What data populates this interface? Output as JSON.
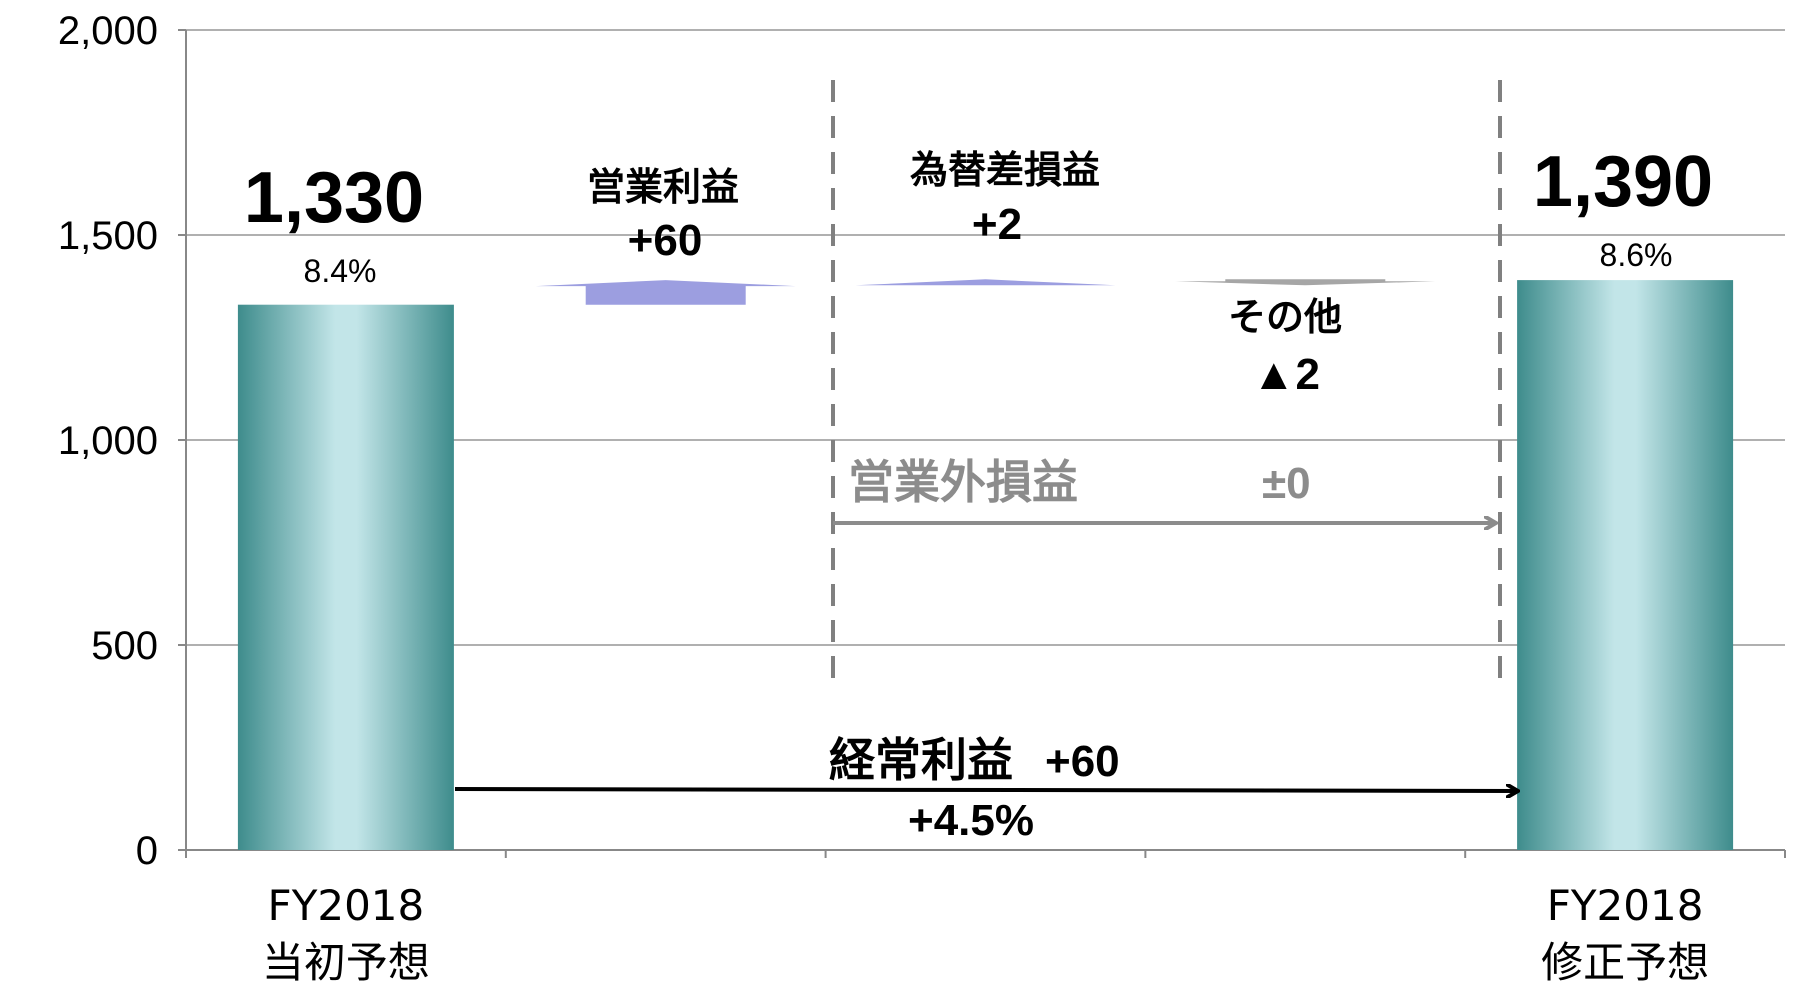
{
  "chart_data": {
    "type": "bar",
    "variant": "waterfall",
    "ylim": [
      0,
      2000
    ],
    "yticks": [
      "0",
      "500",
      "1,000",
      "1,500",
      "2,000"
    ],
    "grid": true,
    "categories": [
      {
        "line1": "FY2018",
        "line2": "当初予想"
      },
      {
        "line1": "",
        "line2": ""
      },
      {
        "line1": "",
        "line2": ""
      },
      {
        "line1": "",
        "line2": ""
      },
      {
        "line1": "FY2018",
        "line2": "修正予想"
      }
    ],
    "totals": [
      {
        "category_index": 0,
        "value": 1330,
        "label": "1,330",
        "margin": "8.4%"
      },
      {
        "category_index": 4,
        "value": 1390,
        "label": "1,390",
        "margin": "8.6%"
      }
    ],
    "changes": [
      {
        "name": "営業利益",
        "delta_label": "+60",
        "value": 60,
        "color": "#9c9ee0"
      },
      {
        "name": "為替差損益",
        "delta_label": "+2",
        "value": 2,
        "color": "#9c9ee0"
      },
      {
        "name": "その他",
        "delta_label": "▲2",
        "value": -2,
        "color": "#a6a6a6"
      }
    ],
    "annotations": {
      "non_operating": {
        "text": "営業外損益",
        "value": "±0"
      },
      "ordinary": {
        "text": "経常利益",
        "value": "+60",
        "rate": "+4.5%"
      }
    },
    "colors": {
      "bar_edge": "#3e8c8c",
      "bar_mid": "#bfe3e6",
      "grid": "#b0b0b0",
      "dashed": "#808080",
      "arrow_grey": "#8c8c8c"
    }
  }
}
